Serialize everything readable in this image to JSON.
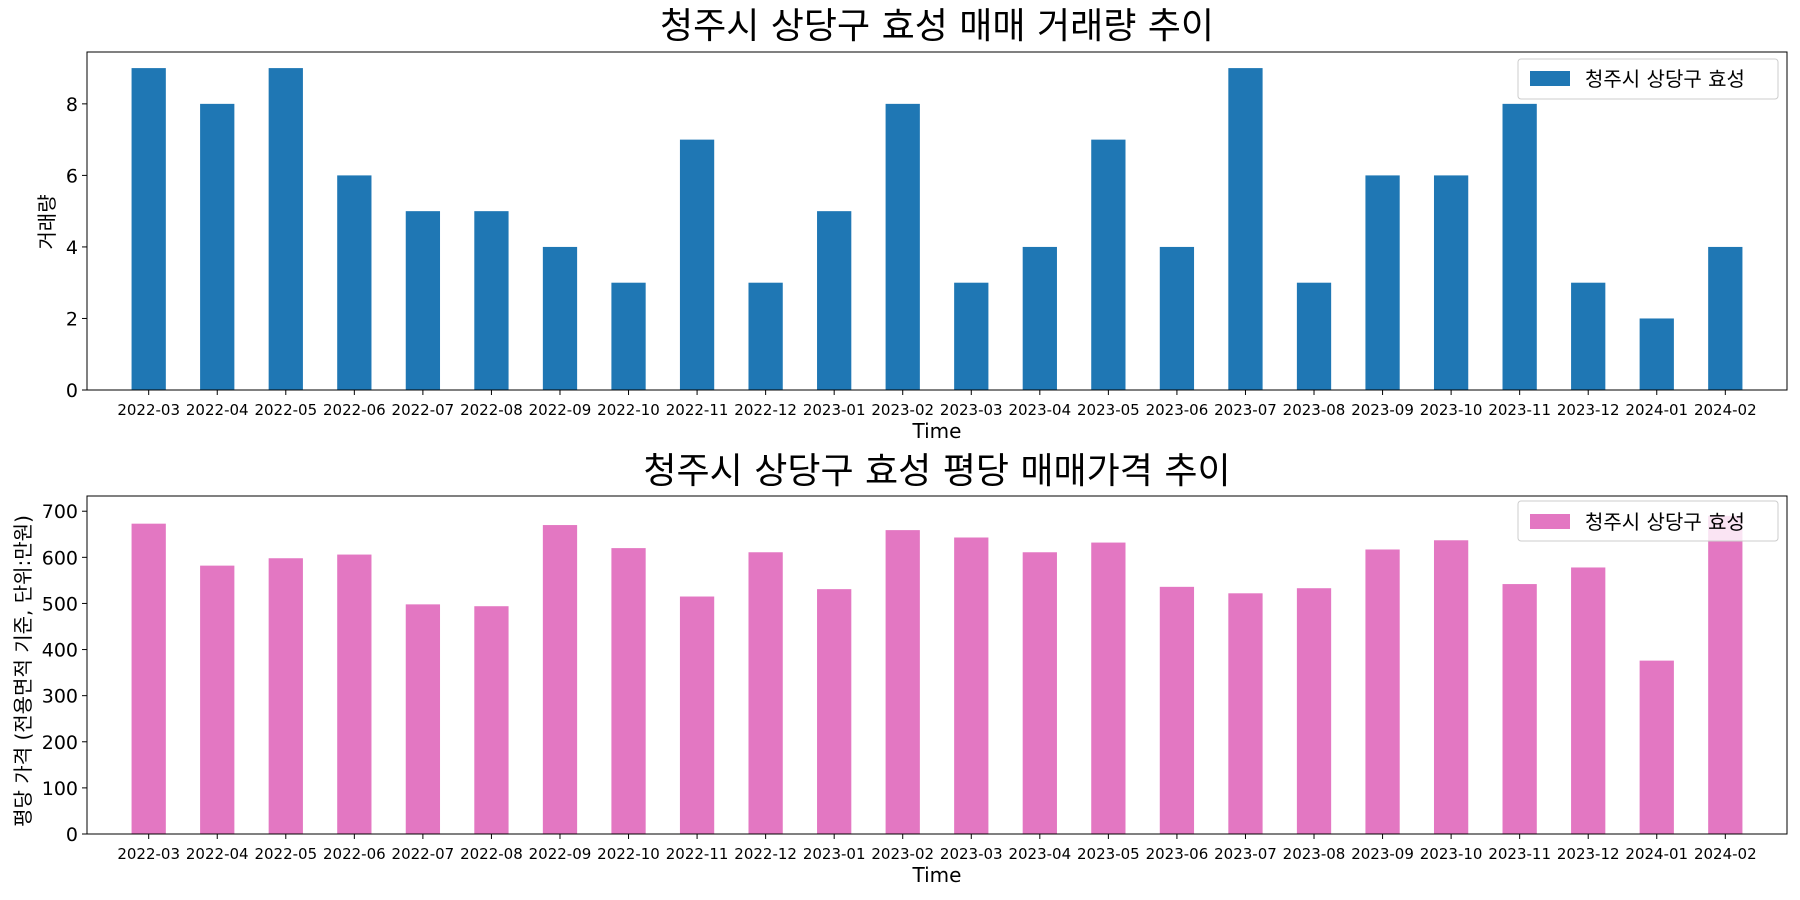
{
  "chart_data": [
    {
      "type": "bar",
      "title": "청주시 상당구 효성 매매 거래량 추이",
      "xlabel": "Time",
      "ylabel": "거래량",
      "categories": [
        "2022-03",
        "2022-04",
        "2022-05",
        "2022-06",
        "2022-07",
        "2022-08",
        "2022-09",
        "2022-10",
        "2022-11",
        "2022-12",
        "2023-01",
        "2023-02",
        "2023-03",
        "2023-04",
        "2023-05",
        "2023-06",
        "2023-07",
        "2023-08",
        "2023-09",
        "2023-10",
        "2023-11",
        "2023-12",
        "2024-01",
        "2024-02"
      ],
      "series": [
        {
          "name": "청주시 상당구 효성",
          "color": "#1f77b4",
          "values": [
            9,
            8,
            9,
            6,
            5,
            5,
            4,
            3,
            7,
            3,
            5,
            8,
            3,
            4,
            7,
            4,
            9,
            3,
            6,
            6,
            8,
            3,
            2,
            4
          ]
        }
      ],
      "ylim": [
        0,
        9.45
      ],
      "yticks": [
        "0",
        "2",
        "4",
        "6",
        "8"
      ],
      "legend_position": "top-right",
      "grid": false
    },
    {
      "type": "bar",
      "title": "청주시 상당구 효성 평당 매매가격 추이",
      "xlabel": "Time",
      "ylabel": "평당 가격 (전용면적 기준, 단위:만원)",
      "categories": [
        "2022-03",
        "2022-04",
        "2022-05",
        "2022-06",
        "2022-07",
        "2022-08",
        "2022-09",
        "2022-10",
        "2022-11",
        "2022-12",
        "2023-01",
        "2023-02",
        "2023-03",
        "2023-04",
        "2023-05",
        "2023-06",
        "2023-07",
        "2023-08",
        "2023-09",
        "2023-10",
        "2023-11",
        "2023-12",
        "2024-01",
        "2024-02"
      ],
      "series": [
        {
          "name": "청주시 상당구 효성",
          "color": "#e377c2",
          "values": [
            673,
            582,
            598,
            606,
            498,
            494,
            670,
            620,
            515,
            611,
            531,
            659,
            643,
            611,
            632,
            536,
            522,
            533,
            617,
            637,
            542,
            578,
            376,
            690
          ]
        }
      ],
      "ylim": [
        0,
        733
      ],
      "yticks": [
        "0",
        "100",
        "200",
        "300",
        "400",
        "500",
        "600",
        "700"
      ],
      "legend_position": "top-right",
      "grid": false
    }
  ]
}
